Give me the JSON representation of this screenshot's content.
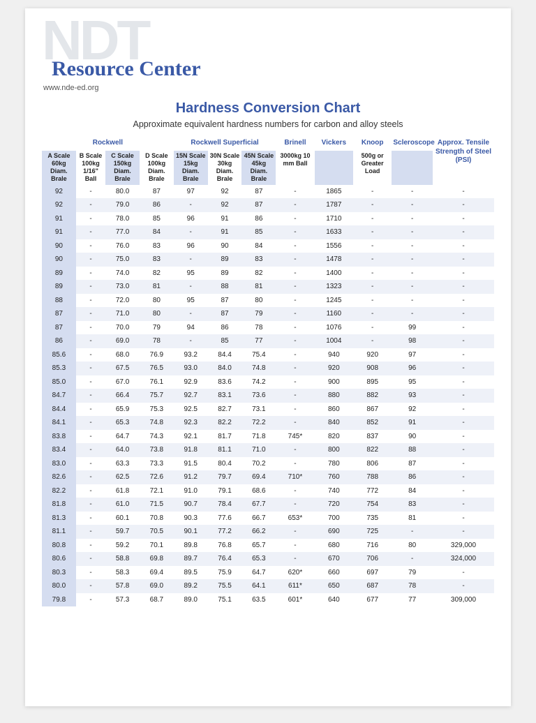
{
  "logo": {
    "ndt": "NDT",
    "rc": "Resource Center",
    "url": "www.nde-ed.org"
  },
  "title": "Hardness Conversion Chart",
  "subtitle": "Approximate equivalent hardness numbers for carbon and alloy steels",
  "groups": {
    "rockwell": "Rockwell",
    "rockwell_sup": "Rockwell Superficial",
    "brinell": "Brinell",
    "vickers": "Vickers",
    "knoop": "Knoop",
    "sclero": "Scleroscope",
    "psi": "Approx. Tensile Strength of Steel (PSI)"
  },
  "headers": [
    "A Scale 60kg Diam. Brale",
    "B Scale 100kg 1/16\" Ball",
    "C Scale 150kg Diam. Brale",
    "D Scale 100kg Diam. Brale",
    "15N Scale 15kg Diam. Brale",
    "30N Scale 30kg Diam. Brale",
    "45N Scale 45kg Diam. Brale",
    "3000kg 10 mm Ball",
    "",
    "500g or Greater Load",
    "",
    ""
  ],
  "col_widths_pct": [
    7.5,
    6.5,
    7.5,
    7.5,
    7.5,
    7.5,
    7.5,
    8.5,
    8.5,
    8.5,
    9,
    13.5
  ],
  "colors": {
    "brand_blue": "#3a59a6",
    "header_band": "#d5ddf0",
    "row_alt": "#eef1f8",
    "ghost": "#e3e6ea"
  },
  "rows": [
    [
      "92",
      "-",
      "80.0",
      "87",
      "97",
      "92",
      "87",
      "-",
      "1865",
      "-",
      "-",
      "-"
    ],
    [
      "92",
      "-",
      "79.0",
      "86",
      "-",
      "92",
      "87",
      "-",
      "1787",
      "-",
      "-",
      "-"
    ],
    [
      "91",
      "-",
      "78.0",
      "85",
      "96",
      "91",
      "86",
      "-",
      "1710",
      "-",
      "-",
      "-"
    ],
    [
      "91",
      "-",
      "77.0",
      "84",
      "-",
      "91",
      "85",
      "-",
      "1633",
      "-",
      "-",
      "-"
    ],
    [
      "90",
      "-",
      "76.0",
      "83",
      "96",
      "90",
      "84",
      "-",
      "1556",
      "-",
      "-",
      "-"
    ],
    [
      "90",
      "-",
      "75.0",
      "83",
      "-",
      "89",
      "83",
      "-",
      "1478",
      "-",
      "-",
      "-"
    ],
    [
      "89",
      "-",
      "74.0",
      "82",
      "95",
      "89",
      "82",
      "-",
      "1400",
      "-",
      "-",
      "-"
    ],
    [
      "89",
      "-",
      "73.0",
      "81",
      "-",
      "88",
      "81",
      "-",
      "1323",
      "-",
      "-",
      "-"
    ],
    [
      "88",
      "-",
      "72.0",
      "80",
      "95",
      "87",
      "80",
      "-",
      "1245",
      "-",
      "-",
      "-"
    ],
    [
      "87",
      "-",
      "71.0",
      "80",
      "-",
      "87",
      "79",
      "-",
      "1160",
      "-",
      "-",
      "-"
    ],
    [
      "87",
      "-",
      "70.0",
      "79",
      "94",
      "86",
      "78",
      "-",
      "1076",
      "-",
      "99",
      "-"
    ],
    [
      "86",
      "-",
      "69.0",
      "78",
      "-",
      "85",
      "77",
      "-",
      "1004",
      "-",
      "98",
      "-"
    ],
    [
      "85.6",
      "-",
      "68.0",
      "76.9",
      "93.2",
      "84.4",
      "75.4",
      "-",
      "940",
      "920",
      "97",
      "-"
    ],
    [
      "85.3",
      "-",
      "67.5",
      "76.5",
      "93.0",
      "84.0",
      "74.8",
      "-",
      "920",
      "908",
      "96",
      "-"
    ],
    [
      "85.0",
      "-",
      "67.0",
      "76.1",
      "92.9",
      "83.6",
      "74.2",
      "-",
      "900",
      "895",
      "95",
      "-"
    ],
    [
      "84.7",
      "-",
      "66.4",
      "75.7",
      "92.7",
      "83.1",
      "73.6",
      "-",
      "880",
      "882",
      "93",
      "-"
    ],
    [
      "84.4",
      "-",
      "65.9",
      "75.3",
      "92.5",
      "82.7",
      "73.1",
      "-",
      "860",
      "867",
      "92",
      "-"
    ],
    [
      "84.1",
      "-",
      "65.3",
      "74.8",
      "92.3",
      "82.2",
      "72.2",
      "-",
      "840",
      "852",
      "91",
      "-"
    ],
    [
      "83.8",
      "-",
      "64.7",
      "74.3",
      "92.1",
      "81.7",
      "71.8",
      "745*",
      "820",
      "837",
      "90",
      "-"
    ],
    [
      "83.4",
      "-",
      "64.0",
      "73.8",
      "91.8",
      "81.1",
      "71.0",
      "-",
      "800",
      "822",
      "88",
      "-"
    ],
    [
      "83.0",
      "-",
      "63.3",
      "73.3",
      "91.5",
      "80.4",
      "70.2",
      "-",
      "780",
      "806",
      "87",
      "-"
    ],
    [
      "82.6",
      "-",
      "62.5",
      "72.6",
      "91.2",
      "79.7",
      "69.4",
      "710*",
      "760",
      "788",
      "86",
      "-"
    ],
    [
      "82.2",
      "-",
      "61.8",
      "72.1",
      "91.0",
      "79.1",
      "68.6",
      "-",
      "740",
      "772",
      "84",
      "-"
    ],
    [
      "81.8",
      "-",
      "61.0",
      "71.5",
      "90.7",
      "78.4",
      "67.7",
      "-",
      "720",
      "754",
      "83",
      "-"
    ],
    [
      "81.3",
      "-",
      "60.1",
      "70.8",
      "90.3",
      "77.6",
      "66.7",
      "653*",
      "700",
      "735",
      "81",
      "-"
    ],
    [
      "81.1",
      "-",
      "59.7",
      "70.5",
      "90.1",
      "77.2",
      "66.2",
      "-",
      "690",
      "725",
      "-",
      "-"
    ],
    [
      "80.8",
      "-",
      "59.2",
      "70.1",
      "89.8",
      "76.8",
      "65.7",
      "-",
      "680",
      "716",
      "80",
      "329,000"
    ],
    [
      "80.6",
      "-",
      "58.8",
      "69.8",
      "89.7",
      "76.4",
      "65.3",
      "-",
      "670",
      "706",
      "-",
      "324,000"
    ],
    [
      "80.3",
      "-",
      "58.3",
      "69.4",
      "89.5",
      "75.9",
      "64.7",
      "620*",
      "660",
      "697",
      "79",
      "-"
    ],
    [
      "80.0",
      "-",
      "57.8",
      "69.0",
      "89.2",
      "75.5",
      "64.1",
      "611*",
      "650",
      "687",
      "78",
      "-"
    ],
    [
      "79.8",
      "-",
      "57.3",
      "68.7",
      "89.0",
      "75.1",
      "63.5",
      "601*",
      "640",
      "677",
      "77",
      "309,000"
    ]
  ]
}
